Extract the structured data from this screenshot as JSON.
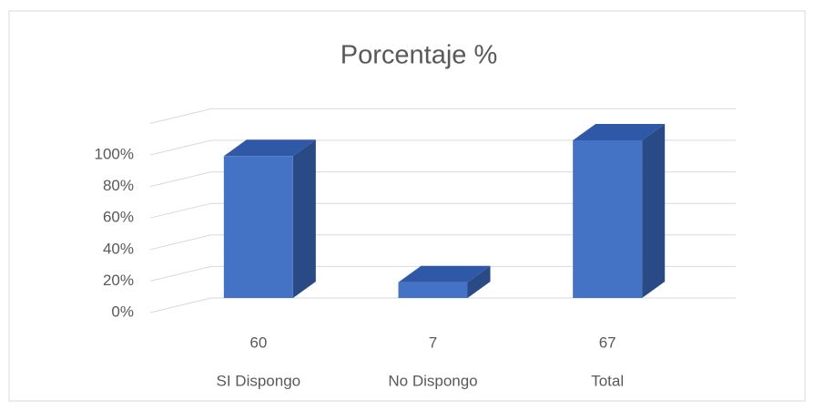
{
  "chart_data": {
    "type": "bar3d",
    "title": "Porcentaje  %",
    "categories": [
      "SI Dispongo",
      "No Dispongo",
      "Total"
    ],
    "counts": [
      60,
      7,
      67
    ],
    "values": [
      90,
      10,
      100
    ],
    "color": "#4472c4",
    "top_color": "#2f58a6",
    "side_color": "#2a4a85",
    "ylim": [
      0,
      120
    ],
    "yticks": [
      {
        "value": 0,
        "label": "0%"
      },
      {
        "value": 20,
        "label": "20%"
      },
      {
        "value": 40,
        "label": "40%"
      },
      {
        "value": 60,
        "label": "60%"
      },
      {
        "value": 80,
        "label": "80%"
      },
      {
        "value": 100,
        "label": "100%"
      }
    ],
    "grid": true
  }
}
